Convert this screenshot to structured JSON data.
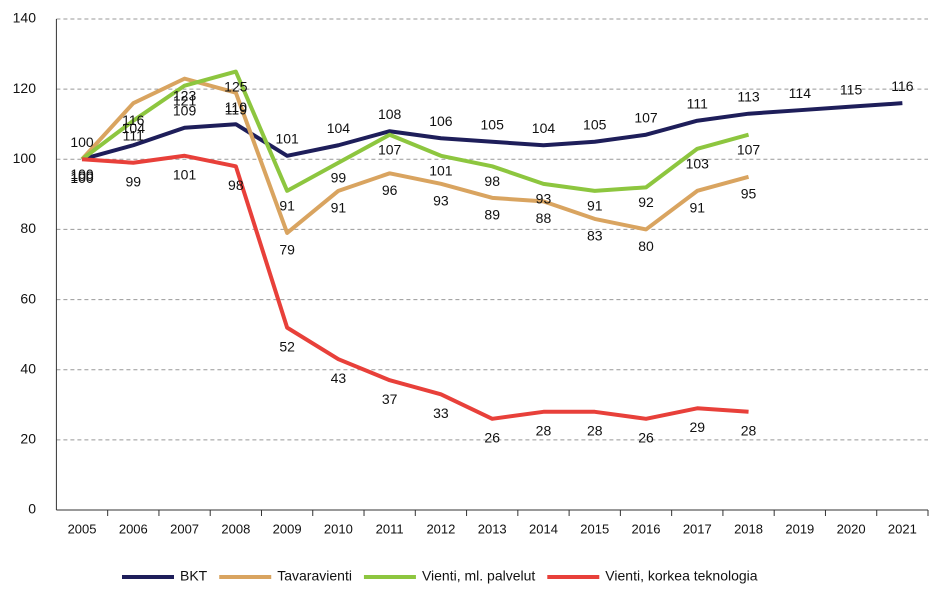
{
  "chart_data": {
    "type": "line",
    "categories": [
      "2005",
      "2006",
      "2007",
      "2008",
      "2009",
      "2010",
      "2011",
      "2012",
      "2013",
      "2014",
      "2015",
      "2016",
      "2017",
      "2018",
      "2019",
      "2020",
      "2021"
    ],
    "series": [
      {
        "name": "BKT",
        "color": "#1e1e5a",
        "values": [
          100,
          104,
          109,
          110,
          101,
          104,
          108,
          106,
          105,
          104,
          105,
          107,
          111,
          113,
          114,
          115,
          116
        ]
      },
      {
        "name": "Tavaravienti",
        "color": "#d9a460",
        "values": [
          100,
          116,
          123,
          119,
          79,
          91,
          96,
          93,
          89,
          88,
          83,
          80,
          91,
          95,
          null,
          null,
          null
        ]
      },
      {
        "name": "Vienti, ml. palvelut",
        "color": "#8dc63f",
        "values": [
          100,
          111,
          121,
          125,
          91,
          99,
          107,
          101,
          98,
          93,
          91,
          92,
          103,
          107,
          null,
          null,
          null
        ]
      },
      {
        "name": "Vienti, korkea teknologia",
        "color": "#e8403a",
        "values": [
          100,
          99,
          101,
          98,
          52,
          43,
          37,
          33,
          26,
          28,
          28,
          26,
          29,
          28,
          null,
          null,
          null
        ]
      }
    ],
    "ylim": [
      0,
      140
    ],
    "yticks": [
      0,
      20,
      40,
      60,
      80,
      100,
      120,
      140
    ],
    "grid": true,
    "legend": "bottom"
  }
}
